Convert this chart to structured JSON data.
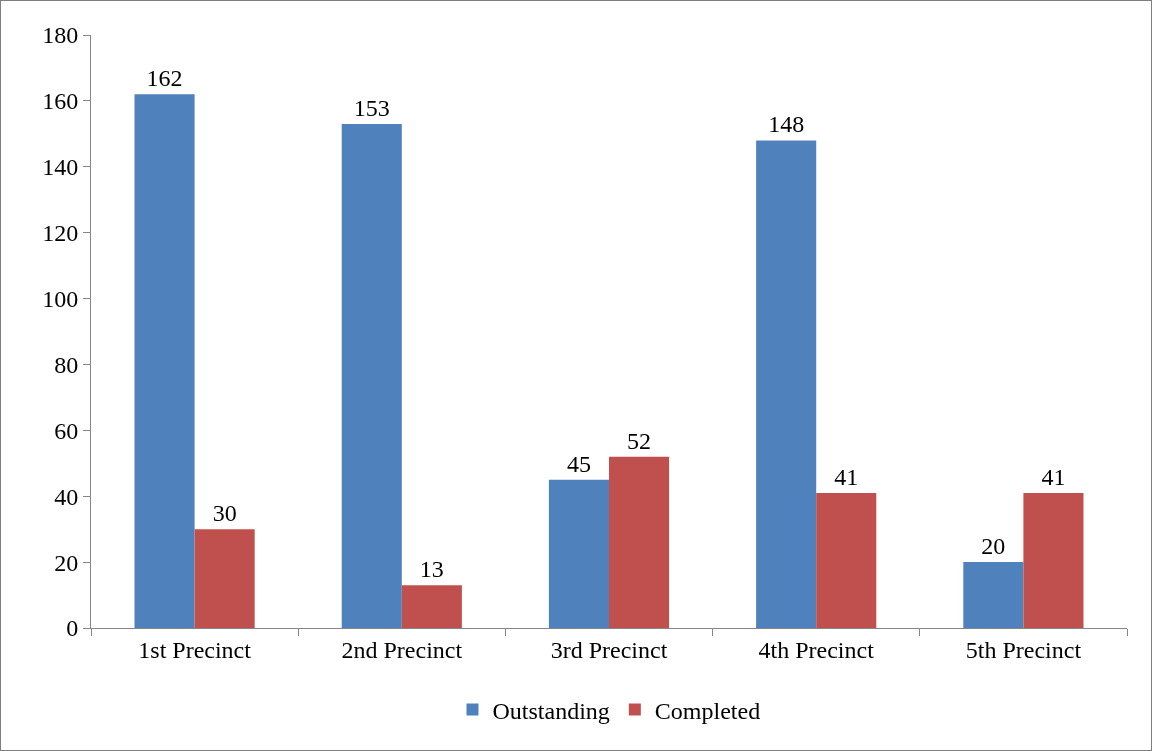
{
  "chart_data": {
    "type": "bar",
    "categories": [
      "1st Precinct",
      "2nd Precinct",
      "3rd Precinct",
      "4th Precinct",
      "5th Precinct"
    ],
    "series": [
      {
        "name": "Outstanding",
        "color": "#4f81bd",
        "values": [
          162,
          153,
          45,
          148,
          20
        ]
      },
      {
        "name": "Completed",
        "color": "#c0504d",
        "values": [
          30,
          13,
          52,
          41,
          41
        ]
      }
    ],
    "ylim": [
      0,
      180
    ],
    "yticks": [
      0,
      20,
      40,
      60,
      80,
      100,
      120,
      140,
      160,
      180
    ],
    "grid": false,
    "legend": "bottom",
    "data_labels": true
  }
}
